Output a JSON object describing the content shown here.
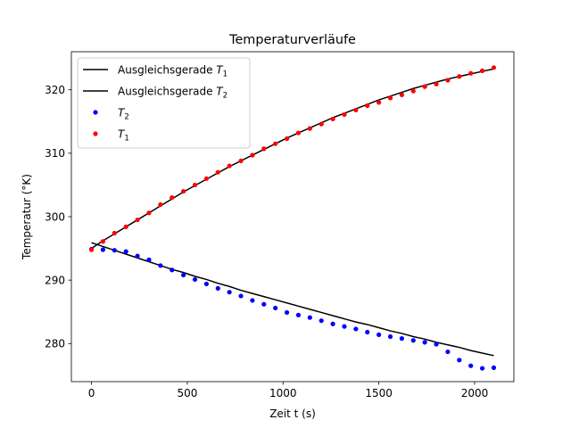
{
  "chart_data": {
    "type": "scatter",
    "title": "Temperaturverläufe",
    "xlabel": "Zeit t (s)",
    "ylabel": "Temperatur (°K)",
    "xlim": [
      -105,
      2205
    ],
    "ylim": [
      274,
      326
    ],
    "xticks": [
      0,
      500,
      1000,
      1500,
      2000
    ],
    "yticks": [
      280,
      290,
      300,
      310,
      320
    ],
    "grid": false,
    "legend_position": "top-left",
    "series": [
      {
        "name": "Ausgleichsgerade T1",
        "name_main": "Ausgleichsgerade ",
        "name_var": "T",
        "name_sub": "1",
        "kind": "line",
        "color": "#000000",
        "x": [
          0,
          60,
          120,
          180,
          240,
          300,
          360,
          420,
          480,
          540,
          600,
          660,
          720,
          780,
          840,
          900,
          960,
          1020,
          1080,
          1140,
          1200,
          1260,
          1320,
          1380,
          1440,
          1500,
          1560,
          1620,
          1680,
          1740,
          1800,
          1860,
          1920,
          1980,
          2040,
          2100
        ],
        "y": [
          295.0,
          296.2,
          297.3,
          298.4,
          299.5,
          300.6,
          301.7,
          302.8,
          303.9,
          304.9,
          305.9,
          306.9,
          307.9,
          308.8,
          309.7,
          310.6,
          311.5,
          312.4,
          313.2,
          314.0,
          314.8,
          315.6,
          316.3,
          317.0,
          317.7,
          318.4,
          319.0,
          319.6,
          320.2,
          320.7,
          321.2,
          321.7,
          322.1,
          322.5,
          322.9,
          323.3
        ]
      },
      {
        "name": "Ausgleichsgerade T2",
        "name_main": "Ausgleichsgerade ",
        "name_var": "T",
        "name_sub": "2",
        "kind": "line",
        "color": "#000000",
        "x": [
          0,
          60,
          120,
          180,
          240,
          300,
          360,
          420,
          480,
          540,
          600,
          660,
          720,
          780,
          840,
          900,
          960,
          1020,
          1080,
          1140,
          1200,
          1260,
          1320,
          1380,
          1440,
          1500,
          1560,
          1620,
          1680,
          1740,
          1800,
          1860,
          1920,
          1980,
          2040,
          2100
        ],
        "y": [
          295.9,
          295.3,
          294.7,
          294.1,
          293.5,
          292.9,
          292.3,
          291.7,
          291.2,
          290.6,
          290.1,
          289.5,
          289.0,
          288.4,
          287.9,
          287.4,
          286.9,
          286.4,
          285.9,
          285.4,
          284.9,
          284.4,
          283.9,
          283.4,
          283.0,
          282.5,
          282.0,
          281.6,
          281.1,
          280.7,
          280.2,
          279.8,
          279.4,
          278.9,
          278.5,
          278.1
        ]
      },
      {
        "name": "T2",
        "name_main": "",
        "name_var": "T",
        "name_sub": "2",
        "kind": "points",
        "color": "#0000ff",
        "x": [
          0,
          60,
          120,
          180,
          240,
          300,
          360,
          420,
          480,
          540,
          600,
          660,
          720,
          780,
          840,
          900,
          960,
          1020,
          1080,
          1140,
          1200,
          1260,
          1320,
          1380,
          1440,
          1500,
          1560,
          1620,
          1680,
          1740,
          1800,
          1860,
          1920,
          1980,
          2040,
          2100
        ],
        "y": [
          294.9,
          294.8,
          294.7,
          294.5,
          293.8,
          293.2,
          292.3,
          291.6,
          290.8,
          290.1,
          289.4,
          288.7,
          288.1,
          287.5,
          286.8,
          286.2,
          285.6,
          284.9,
          284.5,
          284.1,
          283.6,
          283.1,
          282.7,
          282.3,
          281.8,
          281.4,
          281.1,
          280.8,
          280.5,
          280.2,
          279.9,
          278.7,
          277.4,
          276.5,
          276.1,
          276.2
        ]
      },
      {
        "name": "T1",
        "name_main": "",
        "name_var": "T",
        "name_sub": "1",
        "kind": "points",
        "color": "#ff0000",
        "x": [
          0,
          60,
          120,
          180,
          240,
          300,
          360,
          420,
          480,
          540,
          600,
          660,
          720,
          780,
          840,
          900,
          960,
          1020,
          1080,
          1140,
          1200,
          1260,
          1320,
          1380,
          1440,
          1500,
          1560,
          1620,
          1680,
          1740,
          1800,
          1860,
          1920,
          1980,
          2040,
          2100
        ],
        "y": [
          294.8,
          296.1,
          297.4,
          298.4,
          299.5,
          300.6,
          301.9,
          303.0,
          304.0,
          305.0,
          306.0,
          307.0,
          308.0,
          308.8,
          309.7,
          310.7,
          311.5,
          312.3,
          313.2,
          313.9,
          314.6,
          315.4,
          316.1,
          316.8,
          317.5,
          318.0,
          318.7,
          319.2,
          319.8,
          320.5,
          320.9,
          321.5,
          322.1,
          322.6,
          323.0,
          323.5
        ]
      }
    ]
  }
}
